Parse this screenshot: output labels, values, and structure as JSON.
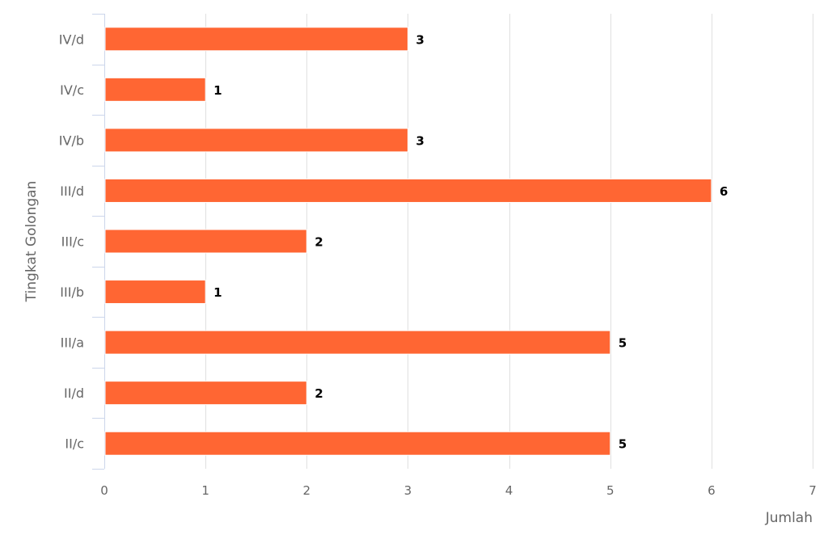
{
  "chart_data": {
    "type": "bar",
    "orientation": "horizontal",
    "categories": [
      "IV/d",
      "IV/c",
      "IV/b",
      "III/d",
      "III/c",
      "III/b",
      "III/a",
      "II/d",
      "II/c"
    ],
    "values": [
      3,
      1,
      3,
      6,
      2,
      1,
      5,
      2,
      5
    ],
    "xlabel": "Jumlah",
    "ylabel": "Tingkat Golongan",
    "xlim": [
      0,
      7
    ],
    "x_ticks": [
      "0",
      "1",
      "2",
      "3",
      "4",
      "5",
      "6",
      "7"
    ],
    "grid": "vertical",
    "data_labels": true,
    "bar_color": "#ff6633"
  }
}
